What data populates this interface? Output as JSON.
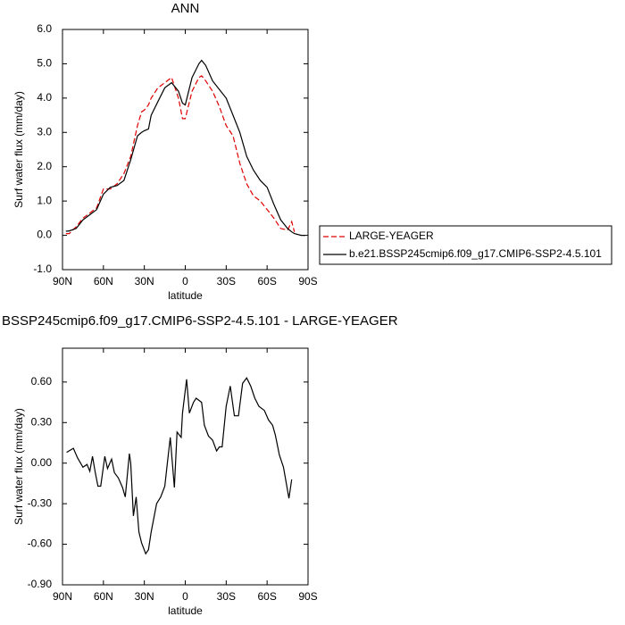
{
  "chart_data": [
    {
      "type": "line",
      "title": "ANN",
      "xlabel": "latitude",
      "ylabel": "Surf water flux (mm/day)",
      "x": [
        87.5,
        85,
        80,
        75,
        70,
        65,
        60,
        55,
        50,
        45,
        40,
        35,
        32,
        30,
        27,
        25,
        20,
        15,
        10,
        5,
        2,
        0,
        -5,
        -10,
        -12,
        -15,
        -20,
        -25,
        -30,
        -35,
        -40,
        -45,
        -50,
        -55,
        -60,
        -65,
        -70,
        -75,
        -78,
        -80,
        -85,
        -88
      ],
      "series": [
        {
          "name": "LARGE-YEAGER",
          "color": "#e00000",
          "dash": true,
          "values": [
            0.05,
            0.05,
            0.25,
            0.5,
            0.65,
            0.8,
            1.35,
            1.35,
            1.5,
            1.8,
            2.3,
            3.2,
            3.6,
            3.65,
            3.8,
            4.0,
            4.3,
            4.45,
            4.6,
            4.0,
            3.4,
            3.4,
            4.2,
            4.6,
            4.65,
            4.5,
            4.2,
            3.75,
            3.2,
            2.9,
            2.1,
            1.5,
            1.15,
            1.0,
            0.75,
            0.5,
            0.2,
            0.15,
            0.4,
            0.1,
            null,
            null
          ]
        },
        {
          "name": "b.e21.BSSP245cmip6.f09_g17.CMIP6-SSP2-4.5.101",
          "color": "#000000",
          "dash": false,
          "values": [
            0.12,
            0.13,
            0.2,
            0.45,
            0.6,
            0.75,
            1.2,
            1.4,
            1.45,
            1.6,
            2.2,
            2.9,
            3.0,
            3.05,
            3.1,
            3.5,
            3.9,
            4.3,
            4.45,
            4.2,
            3.85,
            3.8,
            4.6,
            5.0,
            5.1,
            4.95,
            4.5,
            4.25,
            4.0,
            3.5,
            3.0,
            2.3,
            1.9,
            1.6,
            1.4,
            0.9,
            0.45,
            0.2,
            0.1,
            0.05,
            0.0,
            0.0
          ]
        }
      ],
      "xlim": [
        90,
        -90
      ],
      "xticks": [
        {
          "value": 90,
          "label": "90N"
        },
        {
          "value": 60,
          "label": "60N"
        },
        {
          "value": 30,
          "label": "30N"
        },
        0,
        {
          "value": -30,
          "label": "30S"
        },
        {
          "value": -60,
          "label": "60S"
        },
        {
          "value": -90,
          "label": "90S"
        }
      ],
      "ylim": [
        -1,
        6
      ],
      "yticks": [
        {
          "value": -1,
          "label": "-1.0"
        },
        {
          "value": 0,
          "label": "0.0"
        },
        {
          "value": 1,
          "label": "1.0"
        },
        {
          "value": 2,
          "label": "2.0"
        },
        {
          "value": 3,
          "label": "3.0"
        },
        {
          "value": 4,
          "label": "4.0"
        },
        {
          "value": 5,
          "label": "5.0"
        },
        {
          "value": 6,
          "label": "6.0"
        }
      ],
      "legend": "right"
    },
    {
      "type": "line",
      "title": "BSSP245cmip6.f09_g17.CMIP6-SSP2-4.5.101 - LARGE-YEAGER",
      "xlabel": "latitude",
      "ylabel": "Surf water flux (mm/day)",
      "x": [
        87,
        82,
        79,
        75,
        72,
        70,
        68,
        66,
        64,
        62,
        59,
        57,
        54,
        52,
        49,
        46,
        44,
        41,
        40,
        38,
        36,
        34,
        32,
        29,
        27,
        25,
        21,
        18,
        15,
        13,
        11,
        8,
        6,
        3,
        2,
        -1,
        -3,
        -6,
        -8,
        -12,
        -14,
        -17,
        -20,
        -23,
        -25,
        -27,
        -30,
        -33,
        -36,
        -39,
        -42,
        -45,
        -48,
        -51,
        -54,
        -58,
        -61,
        -64,
        -66,
        -69,
        -72,
        -76,
        -78
      ],
      "series": [
        {
          "name": "diff",
          "color": "#000000",
          "dash": false,
          "values": [
            0.08,
            0.11,
            0.04,
            -0.03,
            -0.01,
            -0.06,
            0.05,
            -0.07,
            -0.17,
            -0.17,
            0.05,
            -0.04,
            0.03,
            -0.07,
            -0.11,
            -0.18,
            -0.25,
            0.07,
            0.0,
            -0.39,
            -0.25,
            -0.51,
            -0.59,
            -0.67,
            -0.64,
            -0.51,
            -0.3,
            -0.25,
            -0.17,
            0.01,
            0.19,
            -0.18,
            0.23,
            0.19,
            0.37,
            0.62,
            0.37,
            0.45,
            0.48,
            0.45,
            0.28,
            0.2,
            0.17,
            0.09,
            0.12,
            0.12,
            0.42,
            0.57,
            0.35,
            0.35,
            0.59,
            0.63,
            0.57,
            0.48,
            0.42,
            0.39,
            0.32,
            0.28,
            0.21,
            0.06,
            -0.03,
            -0.26,
            -0.12
          ]
        }
      ],
      "xlim": [
        90,
        -90
      ],
      "xticks": [
        {
          "value": 90,
          "label": "90N"
        },
        {
          "value": 60,
          "label": "60N"
        },
        {
          "value": 30,
          "label": "30N"
        },
        0,
        {
          "value": -30,
          "label": "30S"
        },
        {
          "value": -60,
          "label": "60S"
        },
        {
          "value": -90,
          "label": "90S"
        }
      ],
      "ylim": [
        -0.9,
        0.85
      ],
      "yticks": [
        {
          "value": -0.9,
          "label": "-0.90"
        },
        {
          "value": -0.6,
          "label": "-0.60"
        },
        {
          "value": -0.3,
          "label": "-0.30"
        },
        {
          "value": 0,
          "label": "0.00"
        },
        {
          "value": 0.3,
          "label": "0.30"
        },
        {
          "value": 0.6,
          "label": "0.60"
        }
      ]
    }
  ]
}
